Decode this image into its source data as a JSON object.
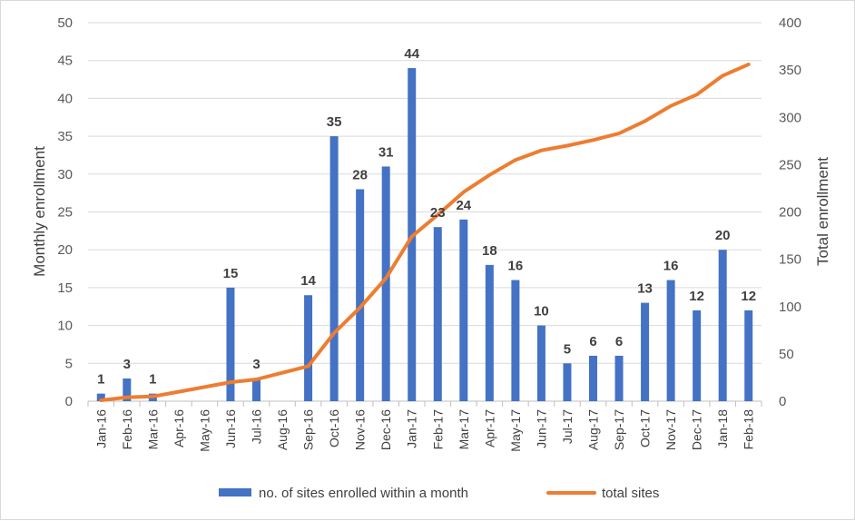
{
  "chart_data": {
    "type": "bar+line",
    "categories": [
      "Jan-16",
      "Feb-16",
      "Mar-16",
      "Apr-16",
      "May-16",
      "Jun-16",
      "Jul-16",
      "Aug-16",
      "Sep-16",
      "Oct-16",
      "Nov-16",
      "Dec-16",
      "Jan-17",
      "Feb-17",
      "Mar-17",
      "Apr-17",
      "May-17",
      "Jun-17",
      "Jul-17",
      "Aug-17",
      "Sep-17",
      "Oct-17",
      "Nov-17",
      "Dec-17",
      "Jan-18",
      "Feb-18"
    ],
    "series": [
      {
        "name": "no. of sites enrolled within a month",
        "type": "bar",
        "axis": "left",
        "color": "#4472c4",
        "values": [
          1,
          3,
          1,
          0,
          0,
          15,
          3,
          0,
          14,
          35,
          28,
          31,
          44,
          23,
          24,
          18,
          16,
          10,
          5,
          6,
          6,
          13,
          16,
          12,
          20,
          12
        ],
        "labels": [
          "1",
          "3",
          "1",
          "",
          "",
          "15",
          "3",
          "",
          "14",
          "35",
          "28",
          "31",
          "44",
          "23",
          "24",
          "18",
          "16",
          "10",
          "5",
          "6",
          "6",
          "13",
          "16",
          "12",
          "20",
          "12"
        ]
      },
      {
        "name": "total sites",
        "type": "line",
        "axis": "right",
        "color": "#ed7d31",
        "values": [
          1,
          4,
          5,
          10,
          15,
          20,
          23,
          30,
          37,
          72,
          99,
          130,
          174,
          197,
          221,
          239,
          255,
          265,
          270,
          276,
          283,
          296,
          312,
          324,
          344,
          356
        ]
      }
    ],
    "ylabel": "Monthly enrollment",
    "y2label": "Total enrollment",
    "ylim": [
      0,
      50
    ],
    "y2lim": [
      0,
      400
    ],
    "yticks": [
      "0",
      "5",
      "10",
      "15",
      "20",
      "25",
      "30",
      "35",
      "40",
      "45",
      "50"
    ],
    "y2ticks": [
      "0",
      "50",
      "100",
      "150",
      "200",
      "250",
      "300",
      "350",
      "400"
    ],
    "grid": true,
    "legend_position": "bottom"
  }
}
